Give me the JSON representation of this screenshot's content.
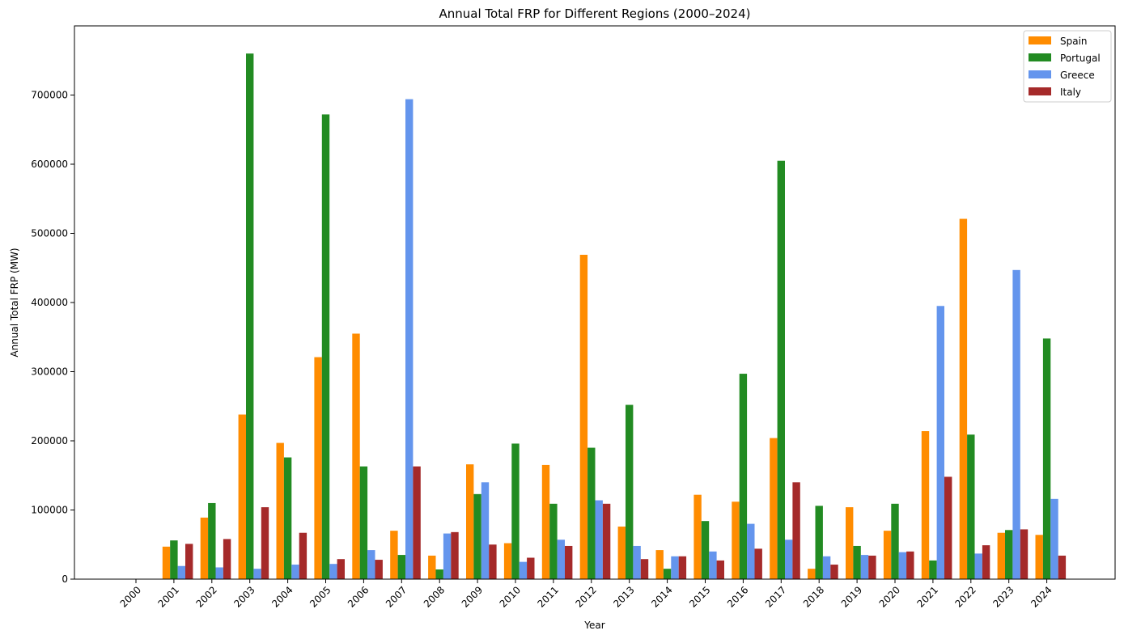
{
  "chart_data": {
    "type": "bar",
    "title": "Annual Total FRP for Different Regions (2000–2024)",
    "xlabel": "Year",
    "ylabel": "Annual Total FRP (MW)",
    "ylim": [
      0,
      800000
    ],
    "yticks": [
      0,
      100000,
      200000,
      300000,
      400000,
      500000,
      600000,
      700000
    ],
    "ytick_labels": [
      "0",
      "100000",
      "200000",
      "300000",
      "400000",
      "500000",
      "600000",
      "700000"
    ],
    "grid": false,
    "legend_position": "top-right",
    "categories": [
      "2000",
      "2001",
      "2002",
      "2003",
      "2004",
      "2005",
      "2006",
      "2007",
      "2008",
      "2009",
      "2010",
      "2011",
      "2012",
      "2013",
      "2014",
      "2015",
      "2016",
      "2017",
      "2018",
      "2019",
      "2020",
      "2021",
      "2022",
      "2023",
      "2024"
    ],
    "series": [
      {
        "name": "Spain",
        "color": "#ff8c00",
        "values": [
          0,
          47000,
          89000,
          238000,
          197000,
          321000,
          355000,
          70000,
          34000,
          166000,
          52000,
          165000,
          469000,
          76000,
          42000,
          122000,
          112000,
          204000,
          15000,
          104000,
          70000,
          214000,
          521000,
          67000,
          64000
        ]
      },
      {
        "name": "Portugal",
        "color": "#228b22",
        "values": [
          0,
          56000,
          110000,
          760000,
          176000,
          672000,
          163000,
          35000,
          14000,
          123000,
          196000,
          109000,
          190000,
          252000,
          15000,
          84000,
          297000,
          605000,
          106000,
          48000,
          109000,
          27000,
          209000,
          71000,
          348000
        ]
      },
      {
        "name": "Greece",
        "color": "#6495ed",
        "values": [
          0,
          19000,
          17000,
          15000,
          21000,
          22000,
          42000,
          694000,
          66000,
          140000,
          25000,
          57000,
          114000,
          48000,
          33000,
          40000,
          80000,
          57000,
          33000,
          35000,
          39000,
          395000,
          37000,
          447000,
          116000
        ]
      },
      {
        "name": "Italy",
        "color": "#a52a2a",
        "values": [
          0,
          51000,
          58000,
          104000,
          67000,
          29000,
          28000,
          163000,
          68000,
          50000,
          31000,
          48000,
          109000,
          29000,
          33000,
          27000,
          44000,
          140000,
          21000,
          34000,
          40000,
          148000,
          49000,
          72000,
          34000
        ]
      }
    ]
  }
}
